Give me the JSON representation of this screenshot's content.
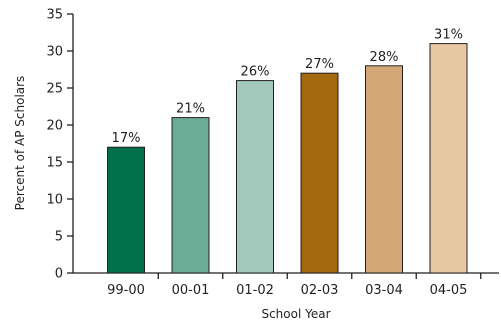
{
  "chart_data": {
    "type": "bar",
    "xlabel": "School Year",
    "ylabel": "Percent of AP Scholars",
    "ylim": [
      0,
      35
    ],
    "yticks": [
      0,
      5,
      10,
      15,
      20,
      25,
      30,
      35
    ],
    "grid": false,
    "legend": "none",
    "categories": [
      "99-00",
      "00-01",
      "01-02",
      "02-03",
      "03-04",
      "04-05"
    ],
    "values": [
      17,
      21,
      26,
      27,
      28,
      31
    ],
    "data_labels": [
      "17%",
      "21%",
      "26%",
      "27%",
      "28%",
      "31%"
    ],
    "bar_colors": [
      "#00704a",
      "#6aac96",
      "#a2c9bb",
      "#a5690d",
      "#d4a776",
      "#e6c9a2"
    ]
  }
}
